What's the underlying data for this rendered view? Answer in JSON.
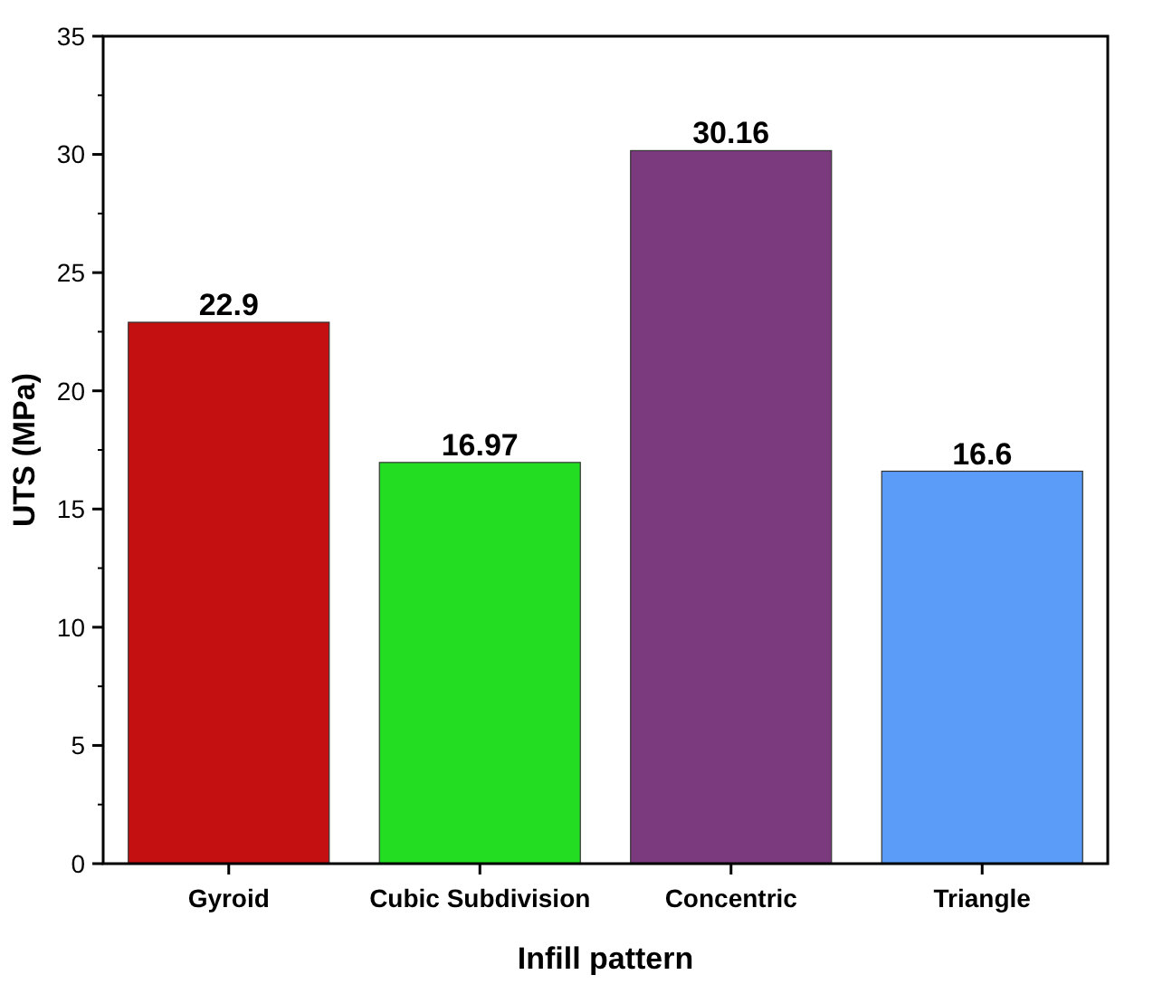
{
  "chart_data": {
    "type": "bar",
    "xlabel": "Infill pattern",
    "ylabel": "UTS (MPa)",
    "categories": [
      "Gyroid",
      "Cubic Subdivision",
      "Concentric",
      "Triangle"
    ],
    "values": [
      22.9,
      16.97,
      30.16,
      16.6
    ],
    "colors": [
      "#c41010",
      "#22dd22",
      "#7b3a7e",
      "#5b9cf8"
    ],
    "ylim": [
      0,
      35
    ],
    "yticks": [
      0,
      5,
      10,
      15,
      20,
      25,
      30,
      35
    ],
    "data_labels": true,
    "grid": false
  }
}
